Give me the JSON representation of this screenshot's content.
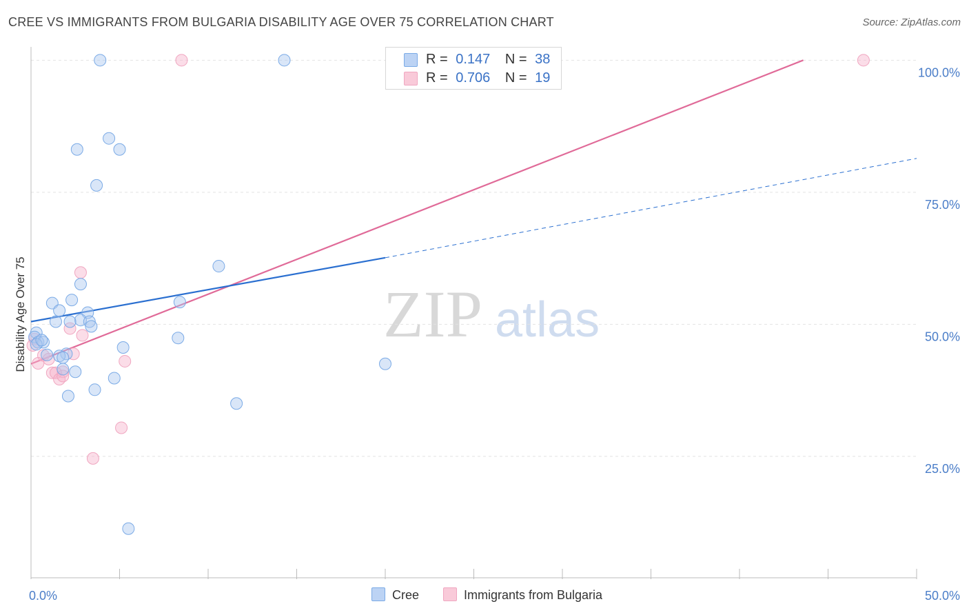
{
  "header": {
    "title": "CREE VS IMMIGRANTS FROM BULGARIA DISABILITY AGE OVER 75 CORRELATION CHART",
    "source": "Source: ZipAtlas.com"
  },
  "watermark": {
    "zip": "ZIP",
    "atlas": "atlas"
  },
  "legend_top": [
    {
      "r_label": "R =",
      "r_value": "0.147",
      "n_label": "N =",
      "n_value": "38"
    },
    {
      "r_label": "R =",
      "r_value": "0.706",
      "n_label": "N =",
      "n_value": "19"
    }
  ],
  "legend_bottom": [
    "Cree",
    "Immigrants from Bulgaria"
  ],
  "chart_data": {
    "type": "scatter",
    "title": "CREE VS IMMIGRANTS FROM BULGARIA DISABILITY AGE OVER 75 CORRELATION CHART",
    "xlabel": "",
    "ylabel": "Disability Age Over 75",
    "xlim": [
      0,
      50
    ],
    "ylim": [
      2,
      102
    ],
    "x_tick_labels": [
      "0.0%",
      "50.0%"
    ],
    "y_ticks": [
      25,
      50,
      75,
      100
    ],
    "y_tick_labels": [
      "25.0%",
      "50.0%",
      "75.0%",
      "100.0%"
    ],
    "grid": "horizontal dashed",
    "legend_position": "top-center",
    "colors": {
      "Cree": "#7aaae6",
      "Immigrants from Bulgaria": "#f0a6c0",
      "cree_line": "#2a6fd0",
      "bulgaria_line": "#e06a98"
    },
    "series": [
      {
        "name": "Cree",
        "r": 0.147,
        "n": 38,
        "trend": {
          "x0": 0,
          "y0": 50.5,
          "x1": 20,
          "y1": 62.6,
          "dashed_to_x": 50,
          "dashed_to_y": 81.4
        },
        "points": [
          [
            3.9,
            100
          ],
          [
            14.3,
            100
          ],
          [
            4.4,
            85.2
          ],
          [
            2.6,
            83.1
          ],
          [
            5.0,
            83.1
          ],
          [
            3.7,
            76.3
          ],
          [
            10.6,
            61.0
          ],
          [
            2.8,
            57.6
          ],
          [
            2.3,
            54.6
          ],
          [
            8.4,
            54.2
          ],
          [
            1.2,
            54.0
          ],
          [
            1.6,
            52.6
          ],
          [
            3.2,
            52.2
          ],
          [
            2.8,
            50.8
          ],
          [
            1.4,
            50.5
          ],
          [
            2.2,
            50.5
          ],
          [
            3.3,
            50.5
          ],
          [
            3.4,
            49.6
          ],
          [
            0.3,
            48.4
          ],
          [
            0.2,
            47.6
          ],
          [
            8.3,
            47.4
          ],
          [
            0.4,
            46.6
          ],
          [
            0.7,
            46.6
          ],
          [
            0.3,
            46.2
          ],
          [
            5.2,
            45.6
          ],
          [
            2.0,
            44.4
          ],
          [
            1.6,
            44.0
          ],
          [
            0.9,
            44.2
          ],
          [
            1.8,
            43.7
          ],
          [
            20.0,
            42.5
          ],
          [
            1.8,
            41.5
          ],
          [
            2.5,
            41.0
          ],
          [
            4.7,
            39.8
          ],
          [
            3.6,
            37.6
          ],
          [
            2.1,
            36.4
          ],
          [
            11.6,
            35.0
          ],
          [
            5.5,
            11.3
          ],
          [
            0.6,
            47.0
          ]
        ]
      },
      {
        "name": "Immigrants from Bulgaria",
        "r": 0.706,
        "n": 19,
        "trend": {
          "x0": 0,
          "y0": 42.5,
          "x1": 43.6,
          "y1": 100
        },
        "points": [
          [
            8.5,
            100
          ],
          [
            47.0,
            100
          ],
          [
            2.8,
            59.8
          ],
          [
            2.2,
            49.2
          ],
          [
            2.9,
            47.9
          ],
          [
            0.2,
            47.2
          ],
          [
            0.1,
            46.0
          ],
          [
            0.7,
            44.1
          ],
          [
            1.0,
            43.4
          ],
          [
            2.4,
            44.4
          ],
          [
            5.3,
            43.0
          ],
          [
            0.4,
            42.6
          ],
          [
            1.8,
            41.0
          ],
          [
            1.2,
            40.8
          ],
          [
            1.4,
            40.8
          ],
          [
            1.6,
            39.6
          ],
          [
            1.8,
            40.2
          ],
          [
            5.1,
            30.4
          ],
          [
            3.5,
            24.6
          ]
        ]
      }
    ]
  }
}
